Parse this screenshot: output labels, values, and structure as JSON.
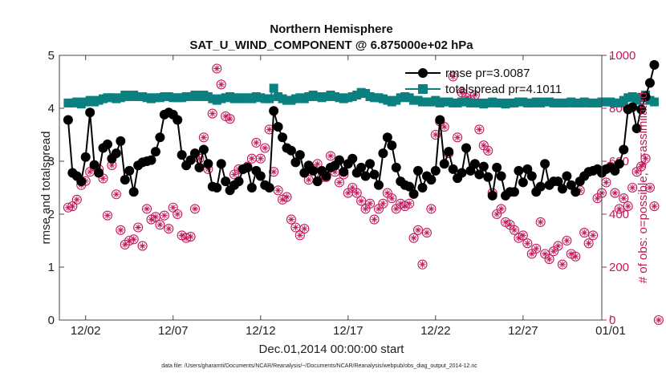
{
  "chart_data": {
    "type": "line",
    "title_line1": "Northern Hemisphere",
    "title_line2": "SAT_U_WIND_COMPONENT @ 6.875000e+02 hPa",
    "xlabel": "Dec.01,2014 00:00:00 start",
    "ylabel_left": "rmse and totalspread",
    "ylabel_right": "# of obs: o=possible; ∗=assimilated",
    "footnote": "data file: /Users/gharamti/Documents/NCAR/Reanalysis/~/Documents/NCAR/Reanalysis/webpub/obs_diag_output_2014-12.nc",
    "x_range_days": [
      0.5,
      31.5
    ],
    "x_ticks": [
      {
        "day": 2,
        "label": "12/02"
      },
      {
        "day": 7,
        "label": "12/07"
      },
      {
        "day": 12,
        "label": "12/12"
      },
      {
        "day": 17,
        "label": "12/17"
      },
      {
        "day": 22,
        "label": "12/22"
      },
      {
        "day": 27,
        "label": "12/27"
      },
      {
        "day": 32,
        "label": "01/01"
      }
    ],
    "y_left_range": [
      0,
      5
    ],
    "y_left_ticks": [
      0,
      1,
      2,
      3,
      4,
      5
    ],
    "y_right_range": [
      0,
      1000
    ],
    "y_right_ticks": [
      0,
      200,
      400,
      600,
      800,
      1000
    ],
    "legend": [
      {
        "name": "rmse pr=3.0087",
        "color": "#000000",
        "marker": "circle"
      },
      {
        "name": "totalspread pr=4.1011",
        "color": "#0a8080",
        "marker": "square"
      }
    ],
    "colors": {
      "rmse": "#000000",
      "spread": "#0a8080",
      "obs": "#c2185b"
    },
    "series": [
      {
        "name": "rmse",
        "axis": "left",
        "x0": 1.0,
        "dx": 0.25,
        "values": [
          3.78,
          2.78,
          2.72,
          2.62,
          3.08,
          3.92,
          2.93,
          2.78,
          3.25,
          3.32,
          3.05,
          3.15,
          3.38,
          2.65,
          2.82,
          2.42,
          2.92,
          2.98,
          3.0,
          3.02,
          3.18,
          3.45,
          3.88,
          3.92,
          3.88,
          3.78,
          3.12,
          2.92,
          3.02,
          3.15,
          2.88,
          3.22,
          2.95,
          2.52,
          2.5,
          2.95,
          2.62,
          2.45,
          2.55,
          2.62,
          2.85,
          2.88,
          2.5,
          2.82,
          2.72,
          2.55,
          2.5,
          3.95,
          3.65,
          3.45,
          3.25,
          3.2,
          2.98,
          3.12,
          2.78,
          2.92,
          2.82,
          2.62,
          2.82,
          2.72,
          2.88,
          2.92,
          3.02,
          2.8,
          2.95,
          3.05,
          2.78,
          2.88,
          2.72,
          2.95,
          2.75,
          2.55,
          3.15,
          3.45,
          3.3,
          2.88,
          2.62,
          2.55,
          2.52,
          2.38,
          2.82,
          2.5,
          2.72,
          2.65,
          2.82,
          3.78,
          2.95,
          3.18,
          2.85,
          2.68,
          2.78,
          3.25,
          2.82,
          2.95,
          2.75,
          2.9,
          2.7,
          2.35,
          2.88,
          2.72,
          2.35,
          2.42,
          2.42,
          2.82,
          2.6,
          2.85,
          2.72,
          2.42,
          2.52,
          2.95,
          2.55,
          2.62,
          2.62,
          2.48,
          2.72,
          2.55,
          2.42,
          2.62,
          2.72,
          2.8,
          2.82,
          2.85,
          2.78,
          2.85,
          2.88,
          2.82,
          2.95,
          3.22,
          3.98,
          4.02,
          3.62,
          3.98,
          4.22,
          4.48,
          4.82
        ]
      },
      {
        "name": "totalspread",
        "axis": "left",
        "x0": 1.0,
        "dx": 0.25,
        "values": [
          4.1,
          4.1,
          4.12,
          4.08,
          4.12,
          4.15,
          4.12,
          4.15,
          4.18,
          4.2,
          4.2,
          4.18,
          4.2,
          4.25,
          4.22,
          4.25,
          4.22,
          4.22,
          4.2,
          4.18,
          4.2,
          4.2,
          4.22,
          4.22,
          4.2,
          4.2,
          4.2,
          4.22,
          4.22,
          4.25,
          4.22,
          4.25,
          4.22,
          4.18,
          4.15,
          4.18,
          4.2,
          4.22,
          4.18,
          4.2,
          4.18,
          4.2,
          4.18,
          4.22,
          4.2,
          4.18,
          4.18,
          4.38,
          4.22,
          4.18,
          4.15,
          4.15,
          4.18,
          4.2,
          4.18,
          4.22,
          4.25,
          4.22,
          4.2,
          4.22,
          4.25,
          4.22,
          4.2,
          4.18,
          4.2,
          4.22,
          4.25,
          4.3,
          4.28,
          4.22,
          4.2,
          4.2,
          4.18,
          4.15,
          4.12,
          4.15,
          4.2,
          4.22,
          4.2,
          4.15,
          4.15,
          4.12,
          4.12,
          4.12,
          4.15,
          4.1,
          4.12,
          4.12,
          4.1,
          4.1,
          4.12,
          4.12,
          4.1,
          4.1,
          4.1,
          4.08,
          4.1,
          4.12,
          4.1,
          4.1,
          4.08,
          4.1,
          4.1,
          4.12,
          4.12,
          4.1,
          4.1,
          4.12,
          4.1,
          4.12,
          4.12,
          4.1,
          4.1,
          4.1,
          4.1,
          4.12,
          4.1,
          4.1,
          4.12,
          4.1,
          4.1,
          4.1,
          4.12,
          4.12,
          4.12,
          4.1,
          4.1,
          4.15,
          4.2,
          4.22,
          4.15,
          4.2,
          4.25,
          4.15,
          4.12
        ]
      },
      {
        "name": "obs",
        "axis": "right",
        "x0": 1.0,
        "dx": 0.25,
        "values": [
          425,
          430,
          455,
          510,
          525,
          560,
          580,
          570,
          535,
          395,
          585,
          475,
          340,
          285,
          300,
          305,
          350,
          280,
          420,
          380,
          390,
          360,
          395,
          345,
          425,
          400,
          320,
          310,
          315,
          420,
          610,
          690,
          570,
          780,
          950,
          890,
          770,
          760,
          550,
          570,
          570,
          580,
          610,
          670,
          610,
          650,
          720,
          560,
          490,
          455,
          465,
          380,
          350,
          320,
          345,
          530,
          570,
          590,
          540,
          540,
          620,
          560,
          520,
          550,
          480,
          500,
          480,
          450,
          420,
          440,
          380,
          420,
          440,
          480,
          460,
          420,
          440,
          430,
          440,
          310,
          340,
          210,
          330,
          420,
          700,
          750,
          730,
          630,
          920,
          690,
          860,
          840,
          830,
          850,
          720,
          660,
          640,
          480,
          400,
          420,
          370,
          360,
          340,
          310,
          320,
          290,
          250,
          270,
          370,
          250,
          230,
          260,
          280,
          210,
          300,
          250,
          240,
          490,
          330,
          290,
          320,
          460,
          480,
          520,
          580,
          480,
          420,
          460,
          430,
          500,
          560,
          580,
          610,
          500,
          430,
          0
        ]
      }
    ]
  }
}
